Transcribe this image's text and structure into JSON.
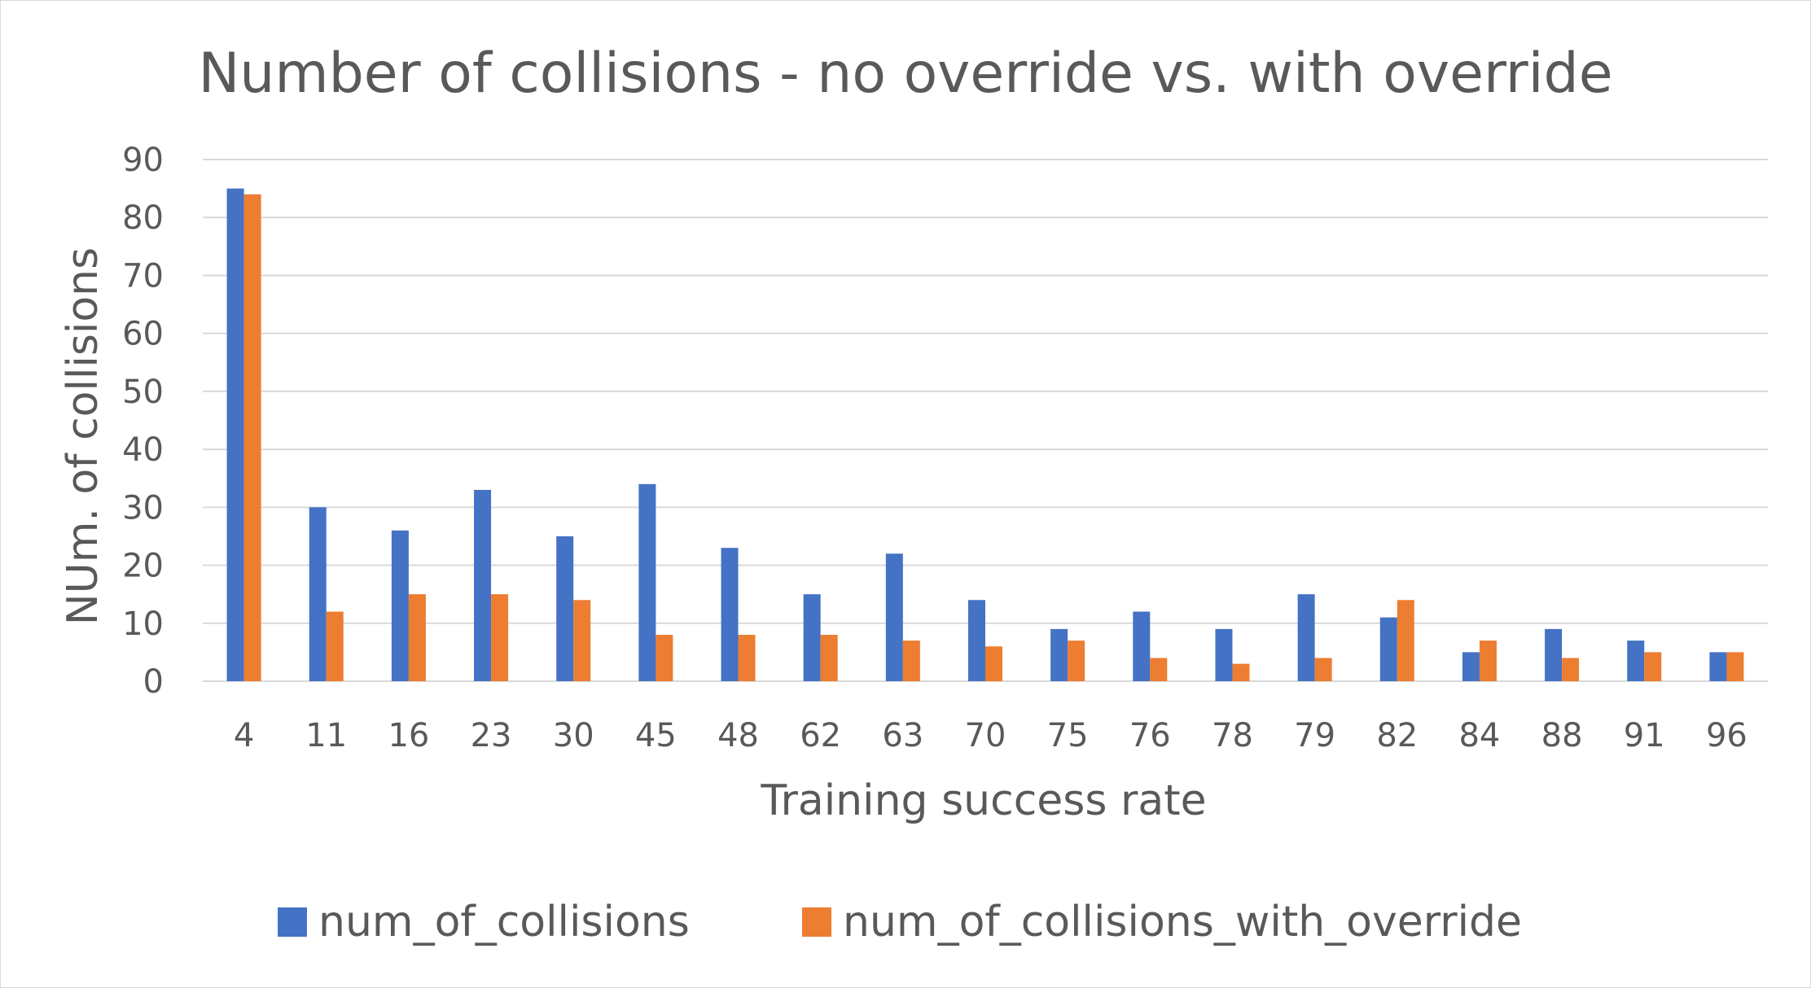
{
  "chart_data": {
    "type": "bar",
    "title": "Number of collisions - no override vs. with override",
    "xlabel": "Training success rate",
    "ylabel": "NUm. of collisions",
    "ylim": [
      0,
      90
    ],
    "yticks": [
      0,
      10,
      20,
      30,
      40,
      50,
      60,
      70,
      80,
      90
    ],
    "grid": true,
    "legend_position": "bottom",
    "categories": [
      "4",
      "11",
      "16",
      "23",
      "30",
      "45",
      "48",
      "62",
      "63",
      "70",
      "75",
      "76",
      "78",
      "79",
      "82",
      "84",
      "88",
      "91",
      "96"
    ],
    "series": [
      {
        "name": "num_of_collisions",
        "color": "#4472C4",
        "values": [
          85,
          30,
          26,
          33,
          25,
          34,
          23,
          15,
          22,
          14,
          9,
          12,
          9,
          15,
          11,
          5,
          9,
          7,
          5
        ]
      },
      {
        "name": "num_of_collisions_with_override",
        "color": "#ED7D31",
        "values": [
          84,
          12,
          15,
          15,
          14,
          8,
          8,
          8,
          7,
          6,
          7,
          4,
          3,
          4,
          14,
          7,
          4,
          5,
          5
        ]
      }
    ]
  }
}
